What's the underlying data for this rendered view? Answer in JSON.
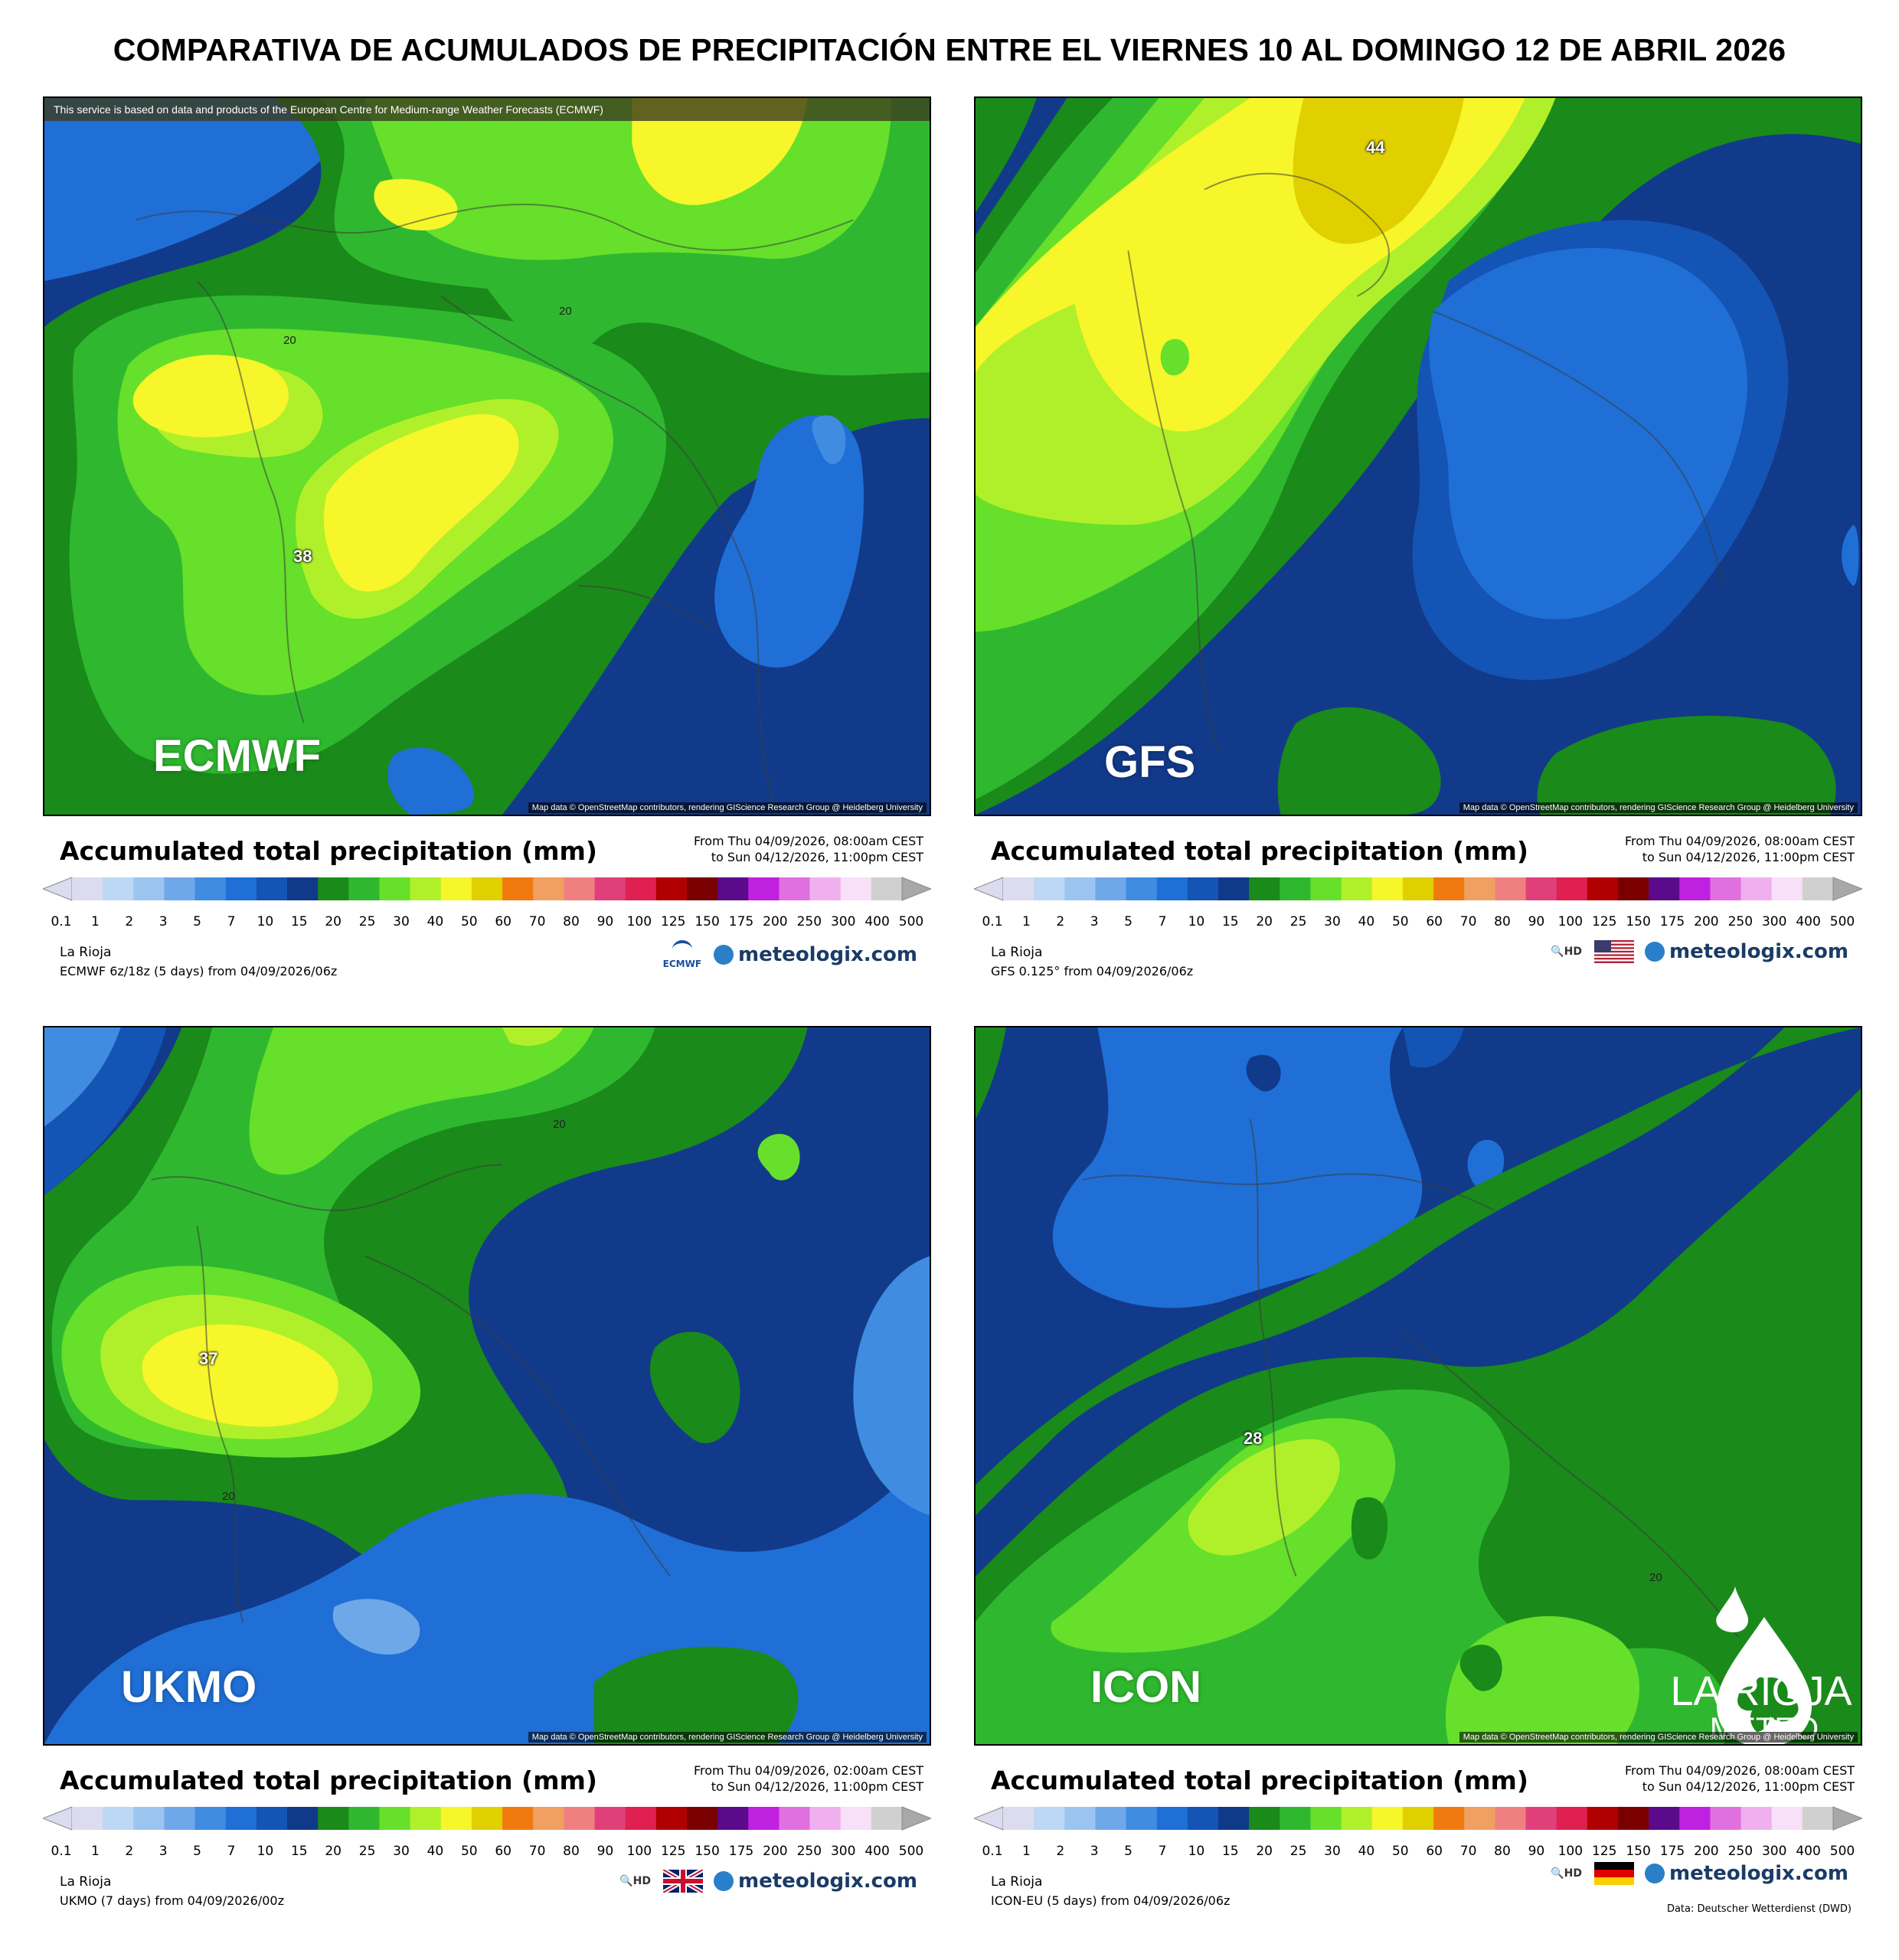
{
  "title": "COMPARATIVA DE ACUMULADOS DE PRECIPITACIÓN ENTRE EL VIERNES 10 AL DOMINGO 12 DE ABRIL 2026",
  "legend": {
    "title": "Accumulated total precipitation (mm)",
    "ticks": [
      "0.1",
      "1",
      "2",
      "3",
      "5",
      "7",
      "10",
      "15",
      "20",
      "25",
      "30",
      "40",
      "50",
      "60",
      "70",
      "80",
      "90",
      "100",
      "125",
      "150",
      "175",
      "200",
      "250",
      "300",
      "400",
      "500"
    ],
    "colors": [
      "#dcdcf0",
      "#bcd8f4",
      "#9cc4f0",
      "#6fa8e8",
      "#3f8ce0",
      "#1f6fd6",
      "#1454b4",
      "#0f3a8a",
      "#1a8a1a",
      "#2fb82f",
      "#66e02a",
      "#b0f02a",
      "#f6f62a",
      "#e0d000",
      "#f07a10",
      "#f0a060",
      "#f08080",
      "#e0407a",
      "#e02050",
      "#b00000",
      "#7a0000",
      "#5a0a8a",
      "#c020e0",
      "#e070e0",
      "#f0b0f0",
      "#f8e0f8",
      "#d0d0d0"
    ]
  },
  "map_attribution": "Map data © OpenStreetMap contributors, rendering GIScience Research Group @ Heidelberg University",
  "region": "La Rioja",
  "brand": "meteologix.com",
  "panels": [
    {
      "model": "ECMWF",
      "banner": "This service is based on data and products of the European Centre for Medium-range Weather Forecasts (ECMWF)",
      "range_from": "From Thu 04/09/2026, 08:00am CEST",
      "range_to": "to Sun 04/12/2026, 11:00pm CEST",
      "run": "ECMWF 6z/18z (5 days) from 04/09/2026/06z",
      "peak": "38",
      "contours": [
        "20",
        "20"
      ],
      "logo": "ECMWF"
    },
    {
      "model": "GFS",
      "range_from": "From Thu 04/09/2026, 08:00am CEST",
      "range_to": "to Sun 04/12/2026, 11:00pm CEST",
      "run": "GFS 0.125° from 04/09/2026/06z",
      "peak": "44",
      "flag": "usa-flag-icon"
    },
    {
      "model": "UKMO",
      "range_from": "From Thu 04/09/2026, 02:00am CEST",
      "range_to": "to Sun 04/12/2026, 11:00pm CEST",
      "run": "UKMO (7 days) from 04/09/2026/00z",
      "peak": "37",
      "contours": [
        "20",
        "20"
      ],
      "flag": "uk-flag-icon"
    },
    {
      "model": "ICON",
      "range_from": "From Thu 04/09/2026, 08:00am CEST",
      "range_to": "to Sun 04/12/2026, 11:00pm CEST",
      "run": "ICON-EU (5 days) from 04/09/2026/06z",
      "peak": "28",
      "contours": [
        "20"
      ],
      "flag": "germany-flag-icon",
      "data_note": "Data: Deutscher Wetterdienst (DWD)"
    }
  ],
  "watermark": {
    "line1": "LA RIOJA",
    "line2": "METEO"
  }
}
